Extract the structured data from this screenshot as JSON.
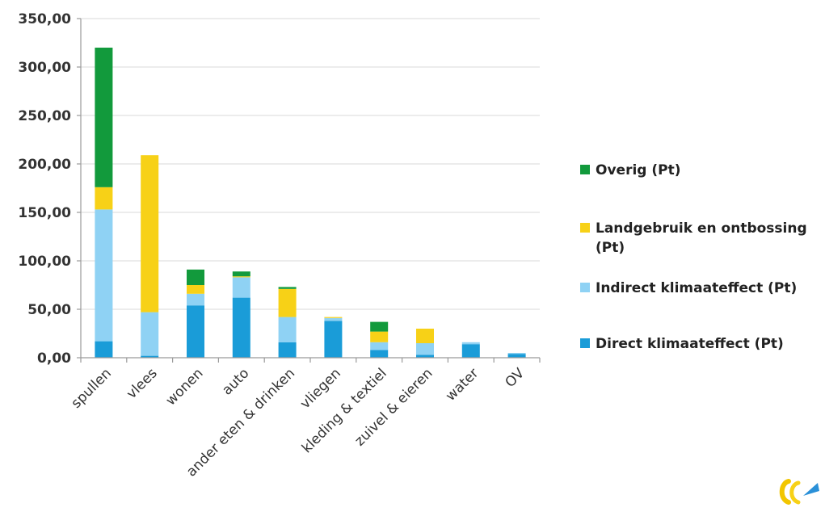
{
  "chart_data": {
    "type": "bar",
    "stacked": true,
    "categories": [
      "spullen",
      "vlees",
      "wonen",
      "auto",
      "ander eten & drinken",
      "vliegen",
      "kleding & textiel",
      "zuivel & eieren",
      "water",
      "OV"
    ],
    "series": [
      {
        "name": "Direct klimaateffect (Pt)",
        "color": "#1a9cd8",
        "values": [
          17,
          2,
          54,
          62,
          16,
          38,
          8,
          3,
          14,
          4
        ]
      },
      {
        "name": "Indirect klimaateffect (Pt)",
        "color": "#8fd2f4",
        "values": [
          136,
          45,
          12,
          21,
          26,
          3,
          8,
          12,
          2,
          1
        ]
      },
      {
        "name": "Landgebruik en ontbossing (Pt)",
        "color": "#f7d117",
        "values": [
          23,
          162,
          9,
          1,
          29,
          1,
          11,
          15,
          0,
          0
        ]
      },
      {
        "name": "Overig (Pt)",
        "color": "#129a3c",
        "values": [
          144,
          0,
          16,
          5,
          2,
          0,
          10,
          0,
          0,
          0
        ]
      }
    ],
    "ylim": [
      0,
      350
    ],
    "yticks": [
      "0,00",
      "50,00",
      "100,00",
      "150,00",
      "200,00",
      "250,00",
      "300,00",
      "350,00"
    ],
    "grid": true,
    "legend_placement": "right",
    "legend_order": [
      "Overig (Pt)",
      "Landgebruik en ontbossing (Pt)",
      "Indirect klimaateffect (Pt)",
      "Direct klimaateffect (Pt)"
    ],
    "xlabel": "",
    "ylabel": "",
    "title": ""
  },
  "logo": {
    "name": "logo-icon"
  }
}
